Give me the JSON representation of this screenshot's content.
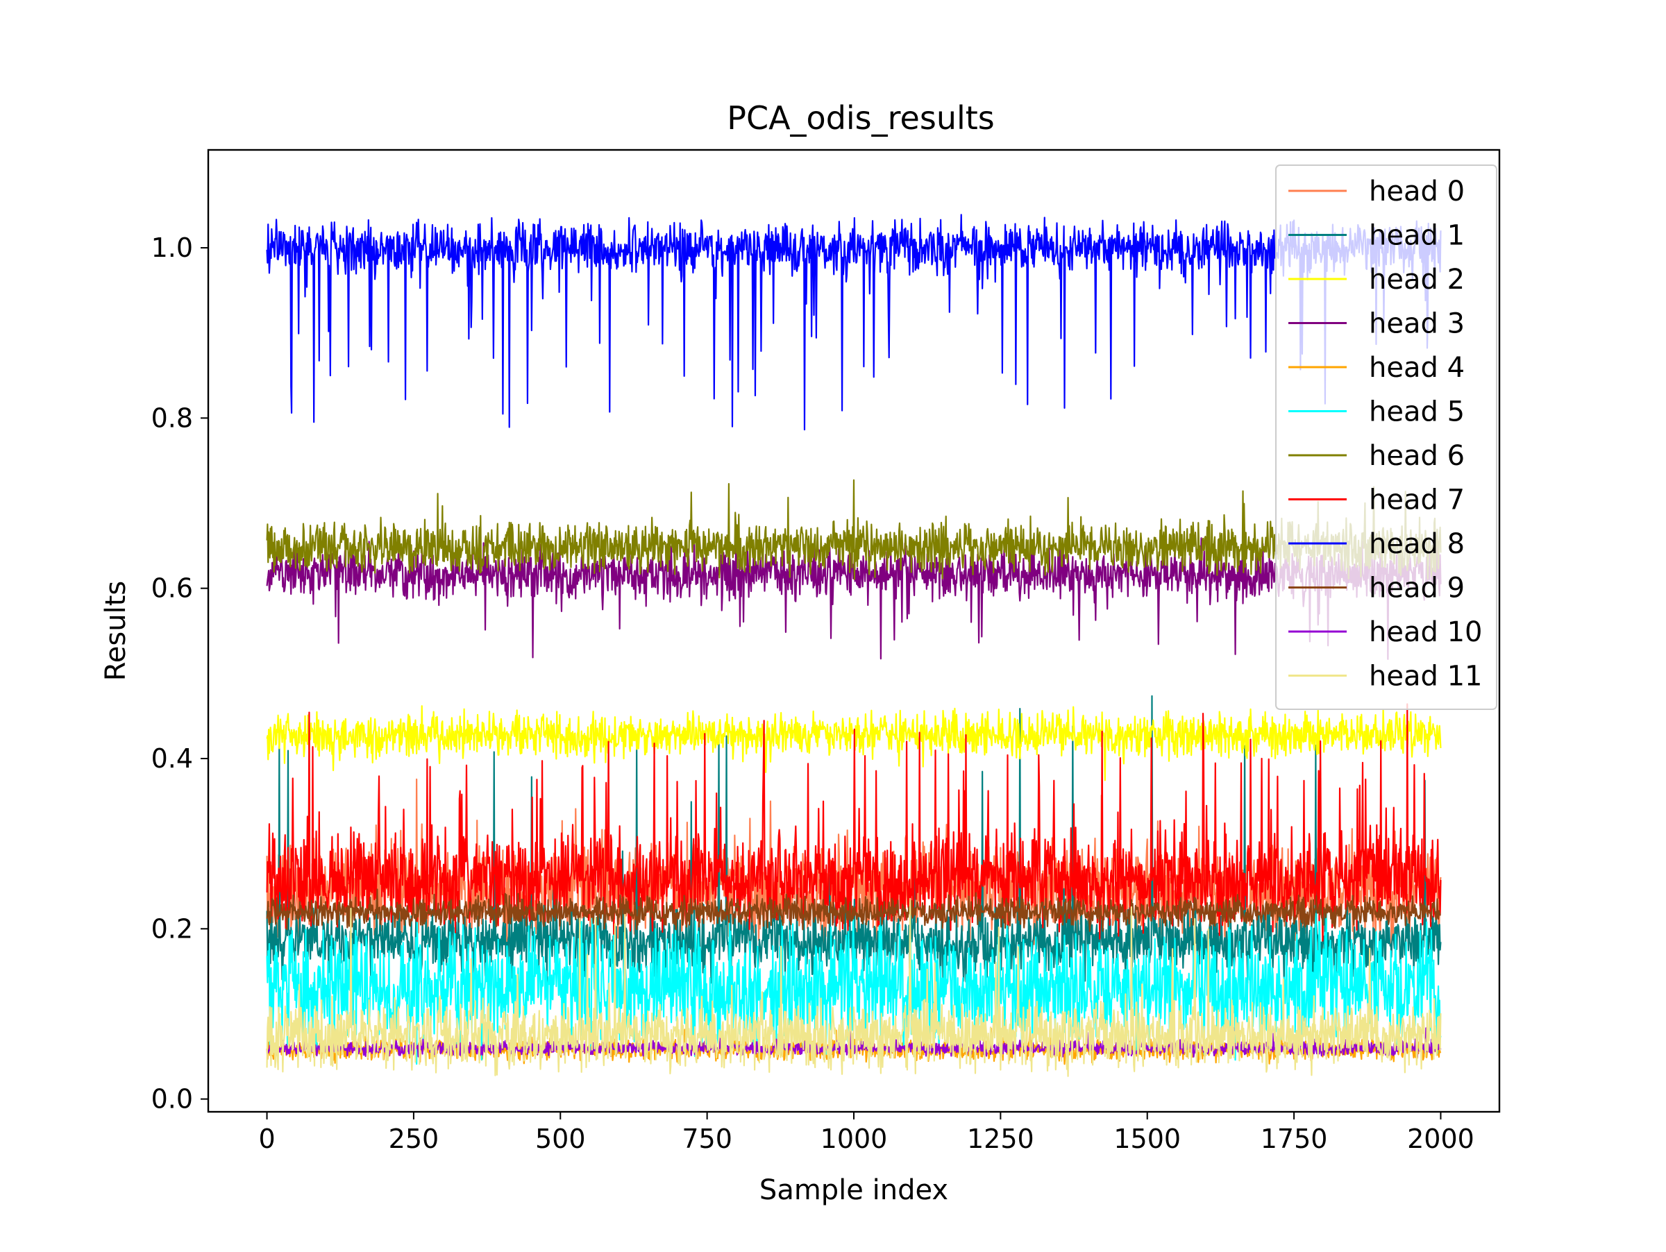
{
  "chart_data": {
    "type": "line",
    "title": "PCA_odis_results",
    "xlabel": "Sample index",
    "ylabel": "Results",
    "xlim": [
      -100,
      2100
    ],
    "ylim": [
      -0.015,
      1.115
    ],
    "xticks": [
      0,
      250,
      500,
      750,
      1000,
      1250,
      1500,
      1750,
      2000
    ],
    "xtick_labels": [
      "0",
      "250",
      "500",
      "750",
      "1000",
      "1250",
      "1500",
      "1750",
      "2000"
    ],
    "yticks": [
      0.0,
      0.2,
      0.4,
      0.6,
      0.8,
      1.0
    ],
    "ytick_labels": [
      "0.0",
      "0.2",
      "0.4",
      "0.6",
      "0.8",
      "1.0"
    ],
    "grid": false,
    "legend_position": "top-right",
    "n_samples": 2001,
    "series": [
      {
        "name": "head 0",
        "color": "#ff7f50",
        "center": 0.245,
        "noise": 0.025,
        "spike_dir": 1,
        "spike_prob": 0.03,
        "spike_max": 0.08
      },
      {
        "name": "head 1",
        "color": "#008080",
        "center": 0.185,
        "noise": 0.018,
        "spike_dir": 1,
        "spike_prob": 0.015,
        "spike_max": 0.28
      },
      {
        "name": "head 2",
        "color": "#ffff00",
        "center": 0.428,
        "noise": 0.012,
        "spike_dir": -1,
        "spike_prob": 0.01,
        "spike_max": 0.06
      },
      {
        "name": "head 3",
        "color": "#800080",
        "center": 0.618,
        "noise": 0.014,
        "spike_dir": -1,
        "spike_prob": 0.02,
        "spike_max": 0.1
      },
      {
        "name": "head 4",
        "color": "#ffa500",
        "center": 0.058,
        "noise": 0.006,
        "spike_dir": 1,
        "spike_prob": 0.01,
        "spike_max": 0.03
      },
      {
        "name": "head 5",
        "color": "#00ffff",
        "center": 0.13,
        "noise": 0.032,
        "spike_dir": 1,
        "spike_prob": 0.01,
        "spike_max": 0.08
      },
      {
        "name": "head 6",
        "color": "#808000",
        "center": 0.648,
        "noise": 0.014,
        "spike_dir": 1,
        "spike_prob": 0.02,
        "spike_max": 0.06
      },
      {
        "name": "head 7",
        "color": "#ff0000",
        "center": 0.255,
        "noise": 0.025,
        "spike_dir": 1,
        "spike_prob": 0.09,
        "spike_max": 0.17
      },
      {
        "name": "head 8",
        "color": "#0000ff",
        "center": 1.0,
        "noise": 0.014,
        "spike_dir": -1,
        "spike_prob": 0.06,
        "spike_max": 0.2
      },
      {
        "name": "head 9",
        "color": "#8b4513",
        "center": 0.22,
        "noise": 0.008,
        "spike_dir": 1,
        "spike_prob": 0.01,
        "spike_max": 0.02
      },
      {
        "name": "head 10",
        "color": "#9400d3",
        "center": 0.06,
        "noise": 0.004,
        "spike_dir": 1,
        "spike_prob": 0.005,
        "spike_max": 0.02
      },
      {
        "name": "head 11",
        "color": "#f0e68c",
        "center": 0.075,
        "noise": 0.018,
        "spike_dir": 1,
        "spike_prob": 0.02,
        "spike_max": 0.15
      }
    ],
    "draw_order": [
      0,
      1,
      2,
      3,
      4,
      5,
      6,
      7,
      9,
      8,
      10,
      11
    ]
  }
}
